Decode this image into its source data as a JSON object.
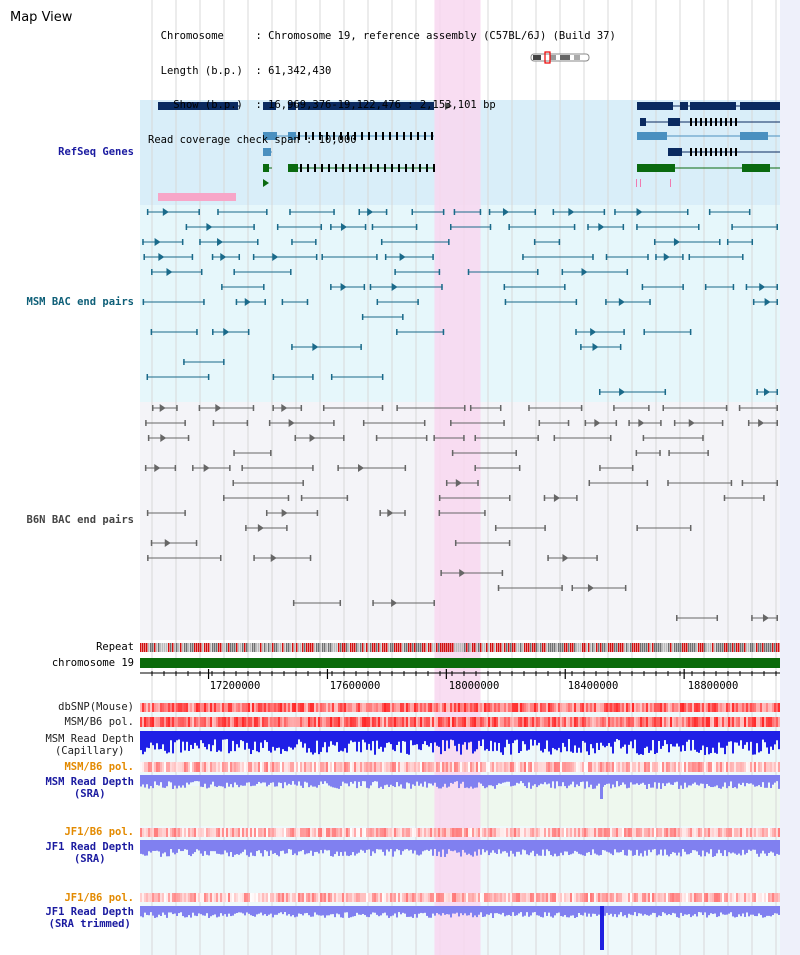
{
  "title": "Map View",
  "info": {
    "chromosome_key": "Chromosome",
    "chromosome_val": "Chromosome 19, reference assembly (C57BL/6J) (Build 37)",
    "length_key": "Length (b.p.)",
    "length_val": "61,342,430",
    "show_key": "Show (b.p.)",
    "show_val": "16,969,376-19,122,476 : 2,153,101 bp",
    "span_key": "Read coverage check span",
    "span_val": "10,000"
  },
  "tracks": {
    "refseq": "RefSeq Genes",
    "msm_bac": "MSM BAC end pairs",
    "b6n_bac": "B6N BAC end pairs",
    "repeat": "Repeat",
    "chromosome": "chromosome 19",
    "dbsnp": "dbSNP(Mouse)",
    "msm_b6_pol": "MSM/B6 pol.",
    "msm_depth_cap_1": "MSM Read Depth",
    "msm_depth_cap_2": "(Capillary)",
    "msm_b6_pol_2": "MSM/B6 pol.",
    "msm_depth_sra_1": "MSM Read Depth",
    "msm_depth_sra_2": "(SRA)",
    "jf1_b6_pol": "JF1/B6 pol.",
    "jf1_depth_sra_1": "JF1 Read Depth",
    "jf1_depth_sra_2": "(SRA)",
    "jf1_b6_pol_2": "JF1/B6 pol.",
    "jf1_depth_trim_1": "JF1 Read Depth",
    "jf1_depth_trim_2": "(SRA trimmed)"
  },
  "axis": {
    "ticks": [
      "17200000",
      "17600000",
      "18000000",
      "18400000",
      "18800000"
    ],
    "tick_values": [
      17200000,
      17600000,
      18000000,
      18400000,
      18800000
    ],
    "start": 16969376,
    "end": 19122476
  },
  "highlight_region": {
    "start": 17960000,
    "end": 18115000
  },
  "colors": {
    "refseq_bg": "#d9eef9",
    "msm_bg": "#e6f7fb",
    "b6n_bg": "#f4f4f8",
    "highlight": "#f8d7f0",
    "gene_dark": "#0a2a60",
    "gene_mid": "#4a90c0",
    "gene_green": "#0a6a10",
    "msm_line": "#1a6a8a",
    "b6n_line": "#666666",
    "chrom_green": "#0b6b0b",
    "depth_blue": "#1f1fe6",
    "depth_sra": "#8080f0"
  }
}
